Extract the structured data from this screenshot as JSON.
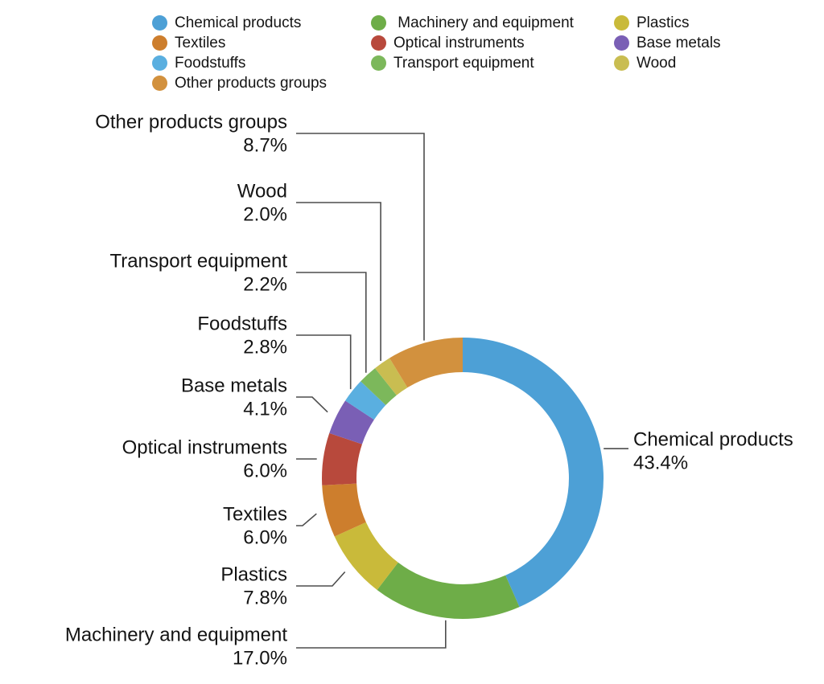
{
  "chart_data": {
    "type": "pie",
    "subtype": "donut",
    "title": "",
    "unit": "%",
    "start_angle_deg": 0,
    "direction": "clockwise",
    "donut_hole_ratio": 0.75,
    "series": [
      {
        "label": "Chemical products",
        "value": 43.4,
        "color": "#4da0d6"
      },
      {
        "label": "Machinery and equipment",
        "value": 17.0,
        "color": "#6ead48"
      },
      {
        "label": "Plastics",
        "value": 7.8,
        "color": "#c9ba3a"
      },
      {
        "label": "Textiles",
        "value": 6.0,
        "color": "#cd7e2d"
      },
      {
        "label": "Optical instruments",
        "value": 6.0,
        "color": "#b8493c"
      },
      {
        "label": "Base metals",
        "value": 4.1,
        "color": "#7a5fb5"
      },
      {
        "label": "Foodstuffs",
        "value": 2.8,
        "color": "#5aafe0"
      },
      {
        "label": "Transport equipment",
        "value": 2.2,
        "color": "#7cb85b"
      },
      {
        "label": "Wood",
        "value": 2.0,
        "color": "#c9bd51"
      },
      {
        "label": "Other products groups",
        "value": 8.7,
        "color": "#d2913e"
      }
    ],
    "legend": {
      "position": "top",
      "columns": [
        [
          "Chemical products",
          "Textiles",
          "Foodstuffs",
          "Other products groups"
        ],
        [
          " Machinery and equipment",
          "Optical instruments",
          "Transport equipment"
        ],
        [
          "Plastics",
          "Base metals",
          "Wood"
        ]
      ]
    },
    "slice_labels": [
      "Chemical products 43.4%",
      "Machinery and equipment 17.0%",
      "Plastics 7.8%",
      "Textiles 6.0%",
      "Optical instruments 6.0%",
      "Base metals 4.1%",
      "Foodstuffs 2.8%",
      "Transport equipment 2.2%",
      "Wood 2.0%",
      "Other products groups 8.7%"
    ]
  },
  "colors": {
    "background": "#ffffff",
    "text": "#141414",
    "leader_line": "#4d4d4d"
  }
}
